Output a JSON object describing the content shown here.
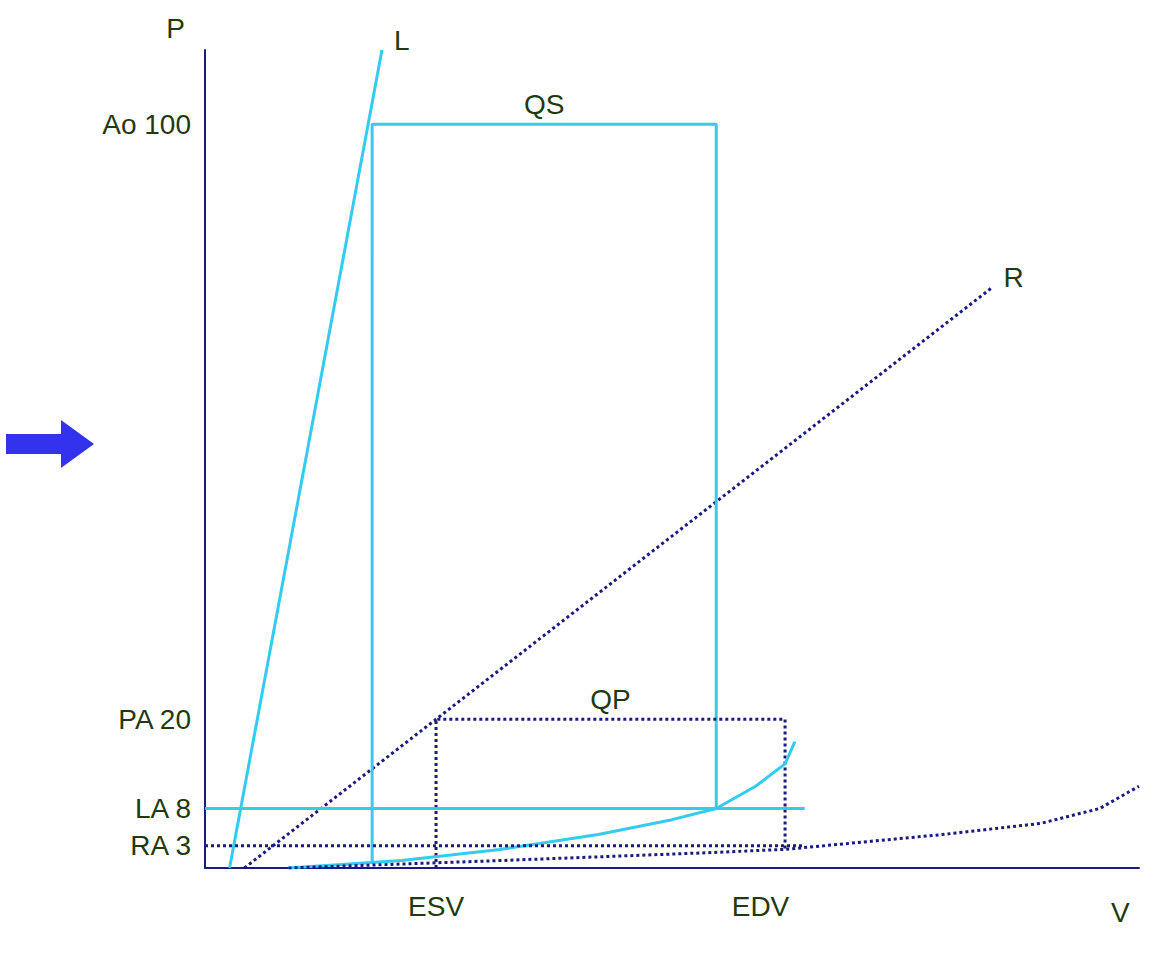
{
  "chart_data": {
    "type": "line",
    "x_label": "V",
    "y_label": "P",
    "xlim": [
      0,
      190
    ],
    "xticks": [
      {
        "value": 47,
        "label": "ESV"
      },
      {
        "value": 113,
        "label": "EDV"
      }
    ],
    "ylim": [
      0,
      110
    ],
    "yticks": [
      {
        "value": 3,
        "label": "RA 3"
      },
      {
        "value": 8,
        "label": "LA 8"
      },
      {
        "value": 20,
        "label": "PA 20"
      },
      {
        "value": 100,
        "label": "Ao 100"
      }
    ],
    "grid": false,
    "series": [
      {
        "name": "L",
        "type": "line",
        "color": "#33ccf0",
        "line_style": "solid",
        "x": [
          5,
          36
        ],
        "values": [
          0,
          110
        ]
      },
      {
        "name": "R",
        "type": "line",
        "color": "#1a1a80",
        "line_style": "dotted",
        "x": [
          8,
          47,
          160
        ],
        "values": [
          0,
          20,
          78
        ]
      },
      {
        "name": "QS",
        "type": "loop",
        "color": "#33ccf0",
        "line_style": "solid",
        "x": [
          34,
          34,
          104,
          104
        ],
        "values": [
          0.8,
          100,
          100,
          8
        ]
      },
      {
        "name": "QP",
        "type": "loop",
        "color": "#1a1a80",
        "line_style": "dotted",
        "x": [
          47,
          47,
          118,
          118
        ],
        "values": [
          0,
          20,
          20,
          2.5
        ]
      },
      {
        "type": "line",
        "color": "#33ccf0",
        "line_style": "solid",
        "x": [
          17,
          40,
          60,
          80,
          95,
          104,
          112,
          118,
          120
        ],
        "values": [
          0,
          1,
          2.5,
          4.5,
          6.5,
          8,
          11,
          14,
          17
        ]
      },
      {
        "type": "line",
        "color": "#1a1a80",
        "line_style": "dotted",
        "x": [
          17,
          60,
          100,
          118,
          150,
          170,
          182,
          190
        ],
        "values": [
          0,
          1,
          2,
          2.5,
          4.5,
          6,
          8,
          11
        ]
      },
      {
        "type": "line",
        "color": "#33ccf0",
        "line_style": "solid",
        "x": [
          0,
          122
        ],
        "values": [
          8,
          8
        ]
      },
      {
        "type": "line",
        "color": "#1a1a80",
        "line_style": "dotted",
        "x": [
          0,
          122
        ],
        "values": [
          3,
          3
        ]
      }
    ]
  }
}
